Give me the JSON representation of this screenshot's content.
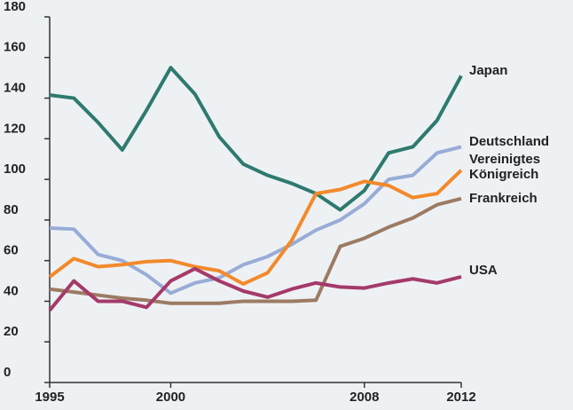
{
  "chart_data": {
    "type": "line",
    "x": [
      1995,
      1996,
      1997,
      1998,
      1999,
      2000,
      2001,
      2002,
      2003,
      2004,
      2005,
      2006,
      2007,
      2008,
      2009,
      2010,
      2011,
      2012
    ],
    "xlim": [
      1995,
      2012
    ],
    "xticks": [
      1995,
      2000,
      2008,
      2012
    ],
    "ylim": [
      0,
      180
    ],
    "yticks": [
      0,
      20,
      40,
      60,
      80,
      100,
      120,
      140,
      160,
      180
    ],
    "grid": false,
    "series": [
      {
        "name": "Japan",
        "color": "#2e7a6e",
        "values": [
          141.5,
          140,
          128,
          114.5,
          134,
          155,
          142,
          121,
          107.5,
          102,
          98,
          93,
          85,
          94.5,
          113,
          116,
          129,
          151
        ]
      },
      {
        "name": "Deutschland",
        "color": "#98acd6",
        "values": [
          76,
          75.5,
          63,
          60,
          53,
          44,
          49,
          51.5,
          58,
          62,
          68,
          75,
          80,
          88,
          100,
          102,
          113,
          116
        ]
      },
      {
        "name": "Vereinigtes Königreich",
        "color": "#f28a2b",
        "values": [
          52,
          61,
          57,
          58,
          59.5,
          60,
          57,
          55,
          48.5,
          54,
          70,
          93,
          95,
          99,
          97,
          91,
          93,
          104.5
        ]
      },
      {
        "name": "Frankreich",
        "color": "#9c7b63",
        "values": [
          46,
          44.5,
          43,
          41.5,
          40.5,
          39,
          39,
          39,
          40,
          40,
          40,
          40.5,
          67,
          71,
          76.5,
          81,
          87.5,
          90.5
        ]
      },
      {
        "name": "USA",
        "color": "#a43a6a",
        "values": [
          35.5,
          50,
          40,
          40,
          37,
          50,
          56,
          50,
          45,
          42,
          46,
          49,
          47,
          46.5,
          49,
          51,
          49,
          52
        ]
      }
    ]
  }
}
